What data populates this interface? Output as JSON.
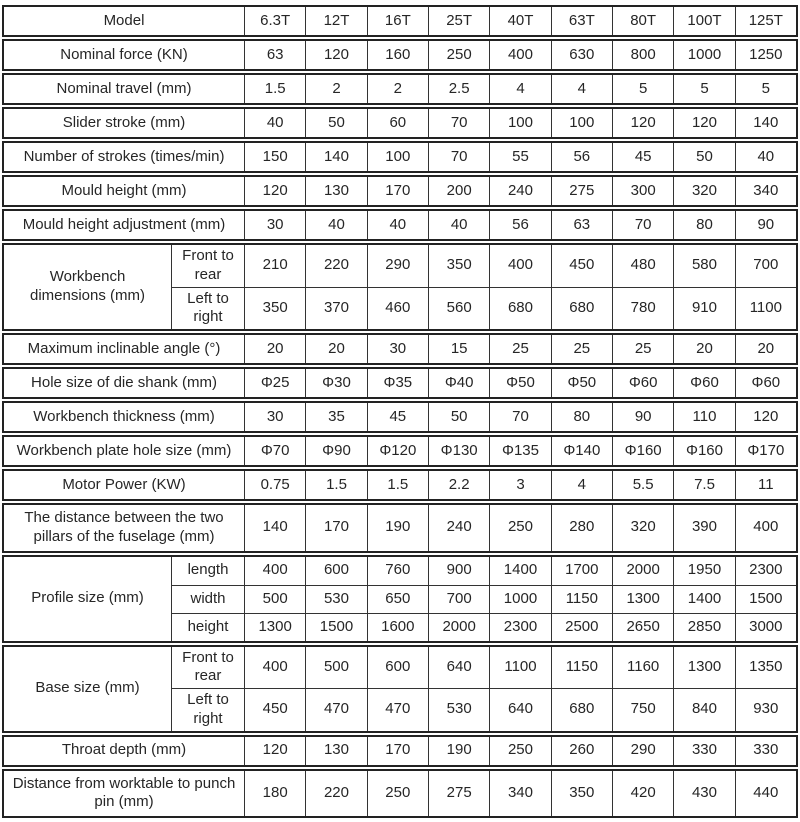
{
  "colors": {
    "border": "#222222",
    "inner_border": "#333333",
    "text": "#262626",
    "background": "#ffffff"
  },
  "table": {
    "rows": [
      {
        "label": "Model",
        "values": [
          "6.3T",
          "12T",
          "16T",
          "25T",
          "40T",
          "63T",
          "80T",
          "100T",
          "125T"
        ]
      },
      {
        "label": "Nominal force (KN)",
        "values": [
          "63",
          "120",
          "160",
          "250",
          "400",
          "630",
          "800",
          "1000",
          "1250"
        ]
      },
      {
        "label": "Nominal travel (mm)",
        "values": [
          "1.5",
          "2",
          "2",
          "2.5",
          "4",
          "4",
          "5",
          "5",
          "5"
        ]
      },
      {
        "label": "Slider stroke (mm)",
        "values": [
          "40",
          "50",
          "60",
          "70",
          "100",
          "100",
          "120",
          "120",
          "140"
        ]
      },
      {
        "label": "Number of strokes (times/min)",
        "values": [
          "150",
          "140",
          "100",
          "70",
          "55",
          "56",
          "45",
          "50",
          "40"
        ]
      },
      {
        "label": "Mould height (mm)",
        "values": [
          "120",
          "130",
          "170",
          "200",
          "240",
          "275",
          "300",
          "320",
          "340"
        ]
      },
      {
        "label": "Mould height adjustment (mm)",
        "values": [
          "30",
          "40",
          "40",
          "40",
          "56",
          "63",
          "70",
          "80",
          "90"
        ]
      },
      {
        "label": "Workbench dimensions (mm)",
        "subrows": [
          {
            "label": "Front to rear",
            "values": [
              "210",
              "220",
              "290",
              "350",
              "400",
              "450",
              "480",
              "580",
              "700"
            ]
          },
          {
            "label": "Left to right",
            "values": [
              "350",
              "370",
              "460",
              "560",
              "680",
              "680",
              "780",
              "910",
              "1100"
            ]
          }
        ]
      },
      {
        "label": "Maximum inclinable angle (°)",
        "values": [
          "20",
          "20",
          "30",
          "15",
          "25",
          "25",
          "25",
          "20",
          "20"
        ]
      },
      {
        "label": "Hole size of die shank (mm)",
        "values": [
          "Φ25",
          "Φ30",
          "Φ35",
          "Φ40",
          "Φ50",
          "Φ50",
          "Φ60",
          "Φ60",
          "Φ60"
        ]
      },
      {
        "label": "Workbench thickness (mm)",
        "values": [
          "30",
          "35",
          "45",
          "50",
          "70",
          "80",
          "90",
          "110",
          "120"
        ]
      },
      {
        "label": "Workbench plate hole size (mm)",
        "values": [
          "Φ70",
          "Φ90",
          "Φ120",
          "Φ130",
          "Φ135",
          "Φ140",
          "Φ160",
          "Φ160",
          "Φ170"
        ]
      },
      {
        "label": "Motor Power (KW)",
        "values": [
          "0.75",
          "1.5",
          "1.5",
          "2.2",
          "3",
          "4",
          "5.5",
          "7.5",
          "11"
        ]
      },
      {
        "label": "The distance between the two pillars of the fuselage (mm)",
        "values": [
          "140",
          "170",
          "190",
          "240",
          "250",
          "280",
          "320",
          "390",
          "400"
        ]
      },
      {
        "label": "Profile size (mm)",
        "subrows": [
          {
            "label": "length",
            "values": [
              "400",
              "600",
              "760",
              "900",
              "1400",
              "1700",
              "2000",
              "1950",
              "2300"
            ]
          },
          {
            "label": "width",
            "values": [
              "500",
              "530",
              "650",
              "700",
              "1000",
              "1150",
              "1300",
              "1400",
              "1500"
            ]
          },
          {
            "label": "height",
            "values": [
              "1300",
              "1500",
              "1600",
              "2000",
              "2300",
              "2500",
              "2650",
              "2850",
              "3000"
            ]
          }
        ]
      },
      {
        "label": "Base size (mm)",
        "subrows": [
          {
            "label": "Front to rear",
            "values": [
              "400",
              "500",
              "600",
              "640",
              "1100",
              "1150",
              "1160",
              "1300",
              "1350"
            ]
          },
          {
            "label": "Left to right",
            "values": [
              "450",
              "470",
              "470",
              "530",
              "640",
              "680",
              "750",
              "840",
              "930"
            ]
          }
        ]
      },
      {
        "label": "Throat depth (mm)",
        "values": [
          "120",
          "130",
          "170",
          "190",
          "250",
          "260",
          "290",
          "330",
          "330"
        ]
      },
      {
        "label": "Distance from worktable to punch pin (mm)",
        "values": [
          "180",
          "220",
          "250",
          "275",
          "340",
          "350",
          "420",
          "430",
          "440"
        ]
      }
    ]
  }
}
